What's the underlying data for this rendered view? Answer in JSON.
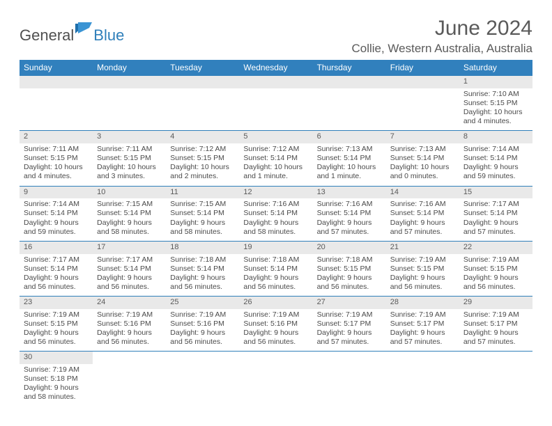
{
  "logo": {
    "general": "General",
    "blue": "Blue"
  },
  "title": "June 2024",
  "location": "Collie, Western Australia, Australia",
  "colors": {
    "header_bg": "#3180bd",
    "header_text": "#ffffff",
    "daynum_bg": "#e9e9e9",
    "rule": "#2f7fba",
    "body_text": "#4a4a4a",
    "title_text": "#5a5a5a"
  },
  "weekdays": [
    "Sunday",
    "Monday",
    "Tuesday",
    "Wednesday",
    "Thursday",
    "Friday",
    "Saturday"
  ],
  "weeks": [
    [
      null,
      null,
      null,
      null,
      null,
      null,
      {
        "n": "1",
        "sr": "Sunrise: 7:10 AM",
        "ss": "Sunset: 5:15 PM",
        "d1": "Daylight: 10 hours",
        "d2": "and 4 minutes."
      }
    ],
    [
      {
        "n": "2",
        "sr": "Sunrise: 7:11 AM",
        "ss": "Sunset: 5:15 PM",
        "d1": "Daylight: 10 hours",
        "d2": "and 4 minutes."
      },
      {
        "n": "3",
        "sr": "Sunrise: 7:11 AM",
        "ss": "Sunset: 5:15 PM",
        "d1": "Daylight: 10 hours",
        "d2": "and 3 minutes."
      },
      {
        "n": "4",
        "sr": "Sunrise: 7:12 AM",
        "ss": "Sunset: 5:15 PM",
        "d1": "Daylight: 10 hours",
        "d2": "and 2 minutes."
      },
      {
        "n": "5",
        "sr": "Sunrise: 7:12 AM",
        "ss": "Sunset: 5:14 PM",
        "d1": "Daylight: 10 hours",
        "d2": "and 1 minute."
      },
      {
        "n": "6",
        "sr": "Sunrise: 7:13 AM",
        "ss": "Sunset: 5:14 PM",
        "d1": "Daylight: 10 hours",
        "d2": "and 1 minute."
      },
      {
        "n": "7",
        "sr": "Sunrise: 7:13 AM",
        "ss": "Sunset: 5:14 PM",
        "d1": "Daylight: 10 hours",
        "d2": "and 0 minutes."
      },
      {
        "n": "8",
        "sr": "Sunrise: 7:14 AM",
        "ss": "Sunset: 5:14 PM",
        "d1": "Daylight: 9 hours",
        "d2": "and 59 minutes."
      }
    ],
    [
      {
        "n": "9",
        "sr": "Sunrise: 7:14 AM",
        "ss": "Sunset: 5:14 PM",
        "d1": "Daylight: 9 hours",
        "d2": "and 59 minutes."
      },
      {
        "n": "10",
        "sr": "Sunrise: 7:15 AM",
        "ss": "Sunset: 5:14 PM",
        "d1": "Daylight: 9 hours",
        "d2": "and 58 minutes."
      },
      {
        "n": "11",
        "sr": "Sunrise: 7:15 AM",
        "ss": "Sunset: 5:14 PM",
        "d1": "Daylight: 9 hours",
        "d2": "and 58 minutes."
      },
      {
        "n": "12",
        "sr": "Sunrise: 7:16 AM",
        "ss": "Sunset: 5:14 PM",
        "d1": "Daylight: 9 hours",
        "d2": "and 58 minutes."
      },
      {
        "n": "13",
        "sr": "Sunrise: 7:16 AM",
        "ss": "Sunset: 5:14 PM",
        "d1": "Daylight: 9 hours",
        "d2": "and 57 minutes."
      },
      {
        "n": "14",
        "sr": "Sunrise: 7:16 AM",
        "ss": "Sunset: 5:14 PM",
        "d1": "Daylight: 9 hours",
        "d2": "and 57 minutes."
      },
      {
        "n": "15",
        "sr": "Sunrise: 7:17 AM",
        "ss": "Sunset: 5:14 PM",
        "d1": "Daylight: 9 hours",
        "d2": "and 57 minutes."
      }
    ],
    [
      {
        "n": "16",
        "sr": "Sunrise: 7:17 AM",
        "ss": "Sunset: 5:14 PM",
        "d1": "Daylight: 9 hours",
        "d2": "and 56 minutes."
      },
      {
        "n": "17",
        "sr": "Sunrise: 7:17 AM",
        "ss": "Sunset: 5:14 PM",
        "d1": "Daylight: 9 hours",
        "d2": "and 56 minutes."
      },
      {
        "n": "18",
        "sr": "Sunrise: 7:18 AM",
        "ss": "Sunset: 5:14 PM",
        "d1": "Daylight: 9 hours",
        "d2": "and 56 minutes."
      },
      {
        "n": "19",
        "sr": "Sunrise: 7:18 AM",
        "ss": "Sunset: 5:14 PM",
        "d1": "Daylight: 9 hours",
        "d2": "and 56 minutes."
      },
      {
        "n": "20",
        "sr": "Sunrise: 7:18 AM",
        "ss": "Sunset: 5:15 PM",
        "d1": "Daylight: 9 hours",
        "d2": "and 56 minutes."
      },
      {
        "n": "21",
        "sr": "Sunrise: 7:19 AM",
        "ss": "Sunset: 5:15 PM",
        "d1": "Daylight: 9 hours",
        "d2": "and 56 minutes."
      },
      {
        "n": "22",
        "sr": "Sunrise: 7:19 AM",
        "ss": "Sunset: 5:15 PM",
        "d1": "Daylight: 9 hours",
        "d2": "and 56 minutes."
      }
    ],
    [
      {
        "n": "23",
        "sr": "Sunrise: 7:19 AM",
        "ss": "Sunset: 5:15 PM",
        "d1": "Daylight: 9 hours",
        "d2": "and 56 minutes."
      },
      {
        "n": "24",
        "sr": "Sunrise: 7:19 AM",
        "ss": "Sunset: 5:16 PM",
        "d1": "Daylight: 9 hours",
        "d2": "and 56 minutes."
      },
      {
        "n": "25",
        "sr": "Sunrise: 7:19 AM",
        "ss": "Sunset: 5:16 PM",
        "d1": "Daylight: 9 hours",
        "d2": "and 56 minutes."
      },
      {
        "n": "26",
        "sr": "Sunrise: 7:19 AM",
        "ss": "Sunset: 5:16 PM",
        "d1": "Daylight: 9 hours",
        "d2": "and 56 minutes."
      },
      {
        "n": "27",
        "sr": "Sunrise: 7:19 AM",
        "ss": "Sunset: 5:17 PM",
        "d1": "Daylight: 9 hours",
        "d2": "and 57 minutes."
      },
      {
        "n": "28",
        "sr": "Sunrise: 7:19 AM",
        "ss": "Sunset: 5:17 PM",
        "d1": "Daylight: 9 hours",
        "d2": "and 57 minutes."
      },
      {
        "n": "29",
        "sr": "Sunrise: 7:19 AM",
        "ss": "Sunset: 5:17 PM",
        "d1": "Daylight: 9 hours",
        "d2": "and 57 minutes."
      }
    ],
    [
      {
        "n": "30",
        "sr": "Sunrise: 7:19 AM",
        "ss": "Sunset: 5:18 PM",
        "d1": "Daylight: 9 hours",
        "d2": "and 58 minutes."
      },
      null,
      null,
      null,
      null,
      null,
      null
    ]
  ]
}
